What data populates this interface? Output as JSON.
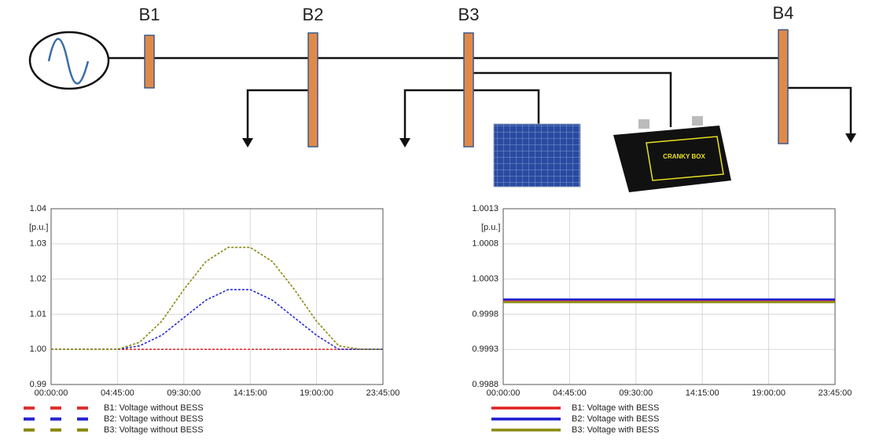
{
  "diagram": {
    "buses": [
      "B1",
      "B2",
      "B3",
      "B4"
    ],
    "battery_label": "CRANKY BOX"
  },
  "chart_data": [
    {
      "type": "line",
      "y_label": "[p.u.]",
      "x": [
        "00:00:00",
        "01:35:00",
        "03:10:00",
        "04:45:00",
        "06:20:00",
        "07:55:00",
        "09:30:00",
        "11:05:00",
        "12:40:00",
        "14:15:00",
        "15:50:00",
        "17:25:00",
        "19:00:00",
        "20:35:00",
        "22:10:00",
        "23:45:00"
      ],
      "xticks": [
        "00:00:00",
        "04:45:00",
        "09:30:00",
        "14:15:00",
        "19:00:00",
        "23:45:00"
      ],
      "ylim": [
        0.99,
        1.04
      ],
      "yticks": [
        0.99,
        {
          "value": 1,
          "label": "1.00"
        },
        1.01,
        1.02,
        1.03,
        1.04
      ],
      "grid": true,
      "dashed": true,
      "series": [
        {
          "name": "B1: Voltage without BESS",
          "color": "#e03030",
          "values": [
            1,
            1,
            1,
            1,
            1,
            1,
            1,
            1,
            1,
            1,
            1,
            1,
            1,
            1,
            1,
            1
          ]
        },
        {
          "name": "B2: Voltage without BESS",
          "color": "#2a2ad0",
          "values": [
            1,
            1,
            1,
            1,
            1.001,
            1.004,
            1.009,
            1.014,
            1.017,
            1.017,
            1.014,
            1.009,
            1.004,
            1,
            1,
            1
          ]
        },
        {
          "name": "B3: Voltage without BESS",
          "color": "#8a8a10",
          "values": [
            1,
            1,
            1,
            1,
            1.002,
            1.008,
            1.017,
            1.025,
            1.029,
            1.029,
            1.025,
            1.017,
            1.008,
            1.001,
            1,
            1
          ]
        }
      ]
    },
    {
      "type": "line",
      "y_label": "[p.u.]",
      "x": [
        "00:00:00",
        "01:35:00",
        "03:10:00",
        "04:45:00",
        "06:20:00",
        "07:55:00",
        "09:30:00",
        "11:05:00",
        "12:40:00",
        "14:15:00",
        "15:50:00",
        "17:25:00",
        "19:00:00",
        "20:35:00",
        "22:10:00",
        "23:45:00"
      ],
      "xticks": [
        "00:00:00",
        "04:45:00",
        "09:30:00",
        "14:15:00",
        "19:00:00",
        "23:45:00"
      ],
      "ylim": [
        0.9988,
        1.0013
      ],
      "yticks": [
        0.9988,
        0.9993,
        0.9998,
        1.0003,
        1.0008,
        1.0013
      ],
      "grid": true,
      "dashed": false,
      "series": [
        {
          "name": "B1: Voltage with BESS",
          "color": "#e02020",
          "values": [
            1,
            1,
            1,
            1,
            1,
            1,
            1,
            1,
            1,
            1,
            1,
            1,
            1,
            1,
            1,
            1
          ]
        },
        {
          "name": "B2: Voltage with BESS",
          "color": "#1a1ad0",
          "values": [
            1.00001,
            1.00001,
            1.00001,
            1.00001,
            1.00001,
            1.00001,
            1.00001,
            1.00001,
            1.00001,
            1.00001,
            1.00001,
            1.00001,
            1.00001,
            1.00001,
            1.00001,
            1.00001
          ]
        },
        {
          "name": "B3: Voltage with BESS",
          "color": "#8a8a10",
          "values": [
            0.99997,
            0.99997,
            0.99997,
            0.99997,
            0.99997,
            0.99997,
            0.99997,
            0.99997,
            0.99997,
            0.99997,
            0.99997,
            0.99997,
            0.99997,
            0.99997,
            0.99997,
            0.99997
          ]
        }
      ]
    }
  ]
}
